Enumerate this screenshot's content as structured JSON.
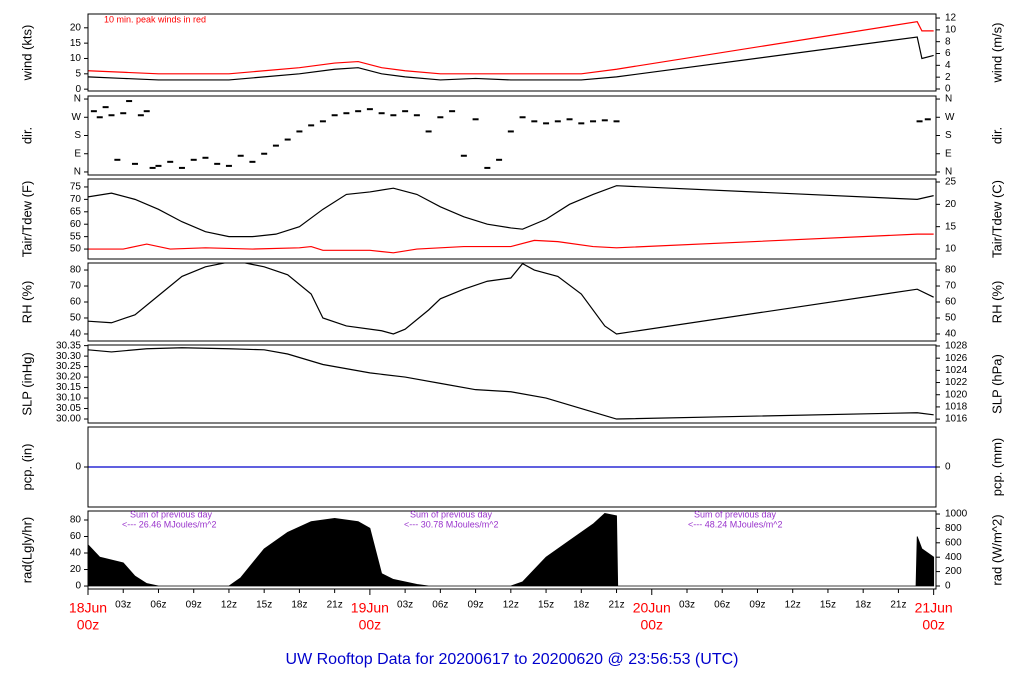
{
  "footer_title": "UW Rooftop Data for 20200617  to  20200620 @ 23:56:53  (UTC)",
  "chart_data": [
    {
      "type": "line",
      "ylabel": "wind (kts)",
      "y2label": "wind (m/s)",
      "annotation": "10 min. peak winds in red",
      "xlim": [
        0,
        72.2
      ],
      "ylim": [
        -0.6,
        24.5
      ],
      "yticks": [
        0,
        5,
        10,
        15,
        20
      ],
      "y2lim": [
        -0.34,
        12.68
      ],
      "y2ticks": [
        0,
        2,
        4,
        6,
        8,
        10,
        12
      ],
      "series": [
        {
          "color": "#000000",
          "x": [
            0,
            3,
            6,
            9,
            12,
            15,
            18,
            21,
            23,
            25,
            27,
            30,
            33,
            36,
            39,
            42,
            45,
            70.6,
            71,
            72
          ],
          "values": [
            4,
            3.5,
            3,
            3,
            3,
            4,
            5,
            6.5,
            7,
            5,
            4,
            3,
            3.5,
            3,
            3,
            3,
            4,
            17,
            10,
            11
          ]
        },
        {
          "color": "#ff0000",
          "x": [
            0,
            3,
            6,
            9,
            12,
            15,
            18,
            21,
            23,
            25,
            27,
            30,
            33,
            36,
            39,
            42,
            45,
            70.6,
            71,
            72
          ],
          "values": [
            6,
            5.5,
            5,
            5,
            5,
            6,
            7,
            8.5,
            9,
            7,
            6,
            5,
            5,
            5,
            5,
            5,
            6.5,
            22,
            19,
            19
          ]
        }
      ]
    },
    {
      "type": "scatter",
      "ylabel": "dir.",
      "y2label": "dir.",
      "xlim": [
        0,
        72.2
      ],
      "ylim": [
        -15,
        375
      ],
      "yticks": [
        {
          "value": 0,
          "label": "N"
        },
        {
          "value": 90,
          "label": "E"
        },
        {
          "value": 180,
          "label": "S"
        },
        {
          "value": 270,
          "label": "W"
        },
        {
          "value": 360,
          "label": "N"
        }
      ],
      "y2lim": [
        -15,
        375
      ],
      "y2ticks": [
        {
          "value": 0,
          "label": "N"
        },
        {
          "value": 90,
          "label": "E"
        },
        {
          "value": 180,
          "label": "S"
        },
        {
          "value": 270,
          "label": "W"
        },
        {
          "value": 360,
          "label": "N"
        }
      ],
      "series": [
        {
          "color": "#000000",
          "x": [
            0.5,
            1,
            1.5,
            2,
            2.5,
            3,
            3.5,
            4,
            4.5,
            5,
            5.5,
            6,
            7,
            8,
            9,
            10,
            11,
            12,
            13,
            14,
            15,
            16,
            17,
            18,
            19,
            20,
            21,
            22,
            23,
            24,
            25,
            26,
            27,
            28,
            29,
            30,
            31,
            32,
            33,
            34,
            35,
            36,
            37,
            38,
            39,
            40,
            41,
            42,
            43,
            44,
            45,
            70.8,
            71.5
          ],
          "values": [
            300,
            270,
            320,
            280,
            60,
            290,
            350,
            40,
            280,
            300,
            20,
            30,
            50,
            20,
            60,
            70,
            40,
            30,
            80,
            50,
            90,
            130,
            160,
            200,
            230,
            250,
            280,
            290,
            300,
            310,
            290,
            280,
            300,
            280,
            200,
            270,
            300,
            80,
            260,
            20,
            60,
            200,
            270,
            250,
            240,
            250,
            260,
            240,
            250,
            255,
            250,
            250,
            260
          ]
        }
      ]
    },
    {
      "type": "line",
      "ylabel": "Tair/Tdew (F)",
      "y2label": "Tair/Tdew (C)",
      "xlim": [
        0,
        72.2
      ],
      "ylim": [
        46.0,
        78.2
      ],
      "yticks": [
        50,
        55,
        60,
        65,
        70,
        75
      ],
      "y2lim": [
        7.76,
        25.67
      ],
      "y2ticks": [
        10,
        15,
        20,
        25
      ],
      "series": [
        {
          "color": "#000000",
          "x": [
            0,
            2,
            4,
            6,
            8,
            10,
            12,
            14,
            16,
            18,
            20,
            22,
            24,
            26,
            28,
            30,
            32,
            34,
            36,
            37,
            39,
            41,
            43,
            45,
            70.6,
            72
          ],
          "values": [
            71,
            72.5,
            70,
            66,
            61,
            57,
            55,
            55,
            56,
            59,
            66,
            72,
            73,
            74.5,
            72,
            67,
            63,
            60,
            58.5,
            58,
            62,
            68,
            72,
            75.5,
            70,
            71.5
          ]
        },
        {
          "color": "#ff0000",
          "x": [
            0,
            3,
            5,
            7,
            10,
            14,
            18,
            19,
            20,
            24,
            26,
            28,
            32,
            36,
            38,
            40,
            43,
            45,
            70.6,
            72
          ],
          "values": [
            50,
            50,
            52,
            50,
            50.5,
            50,
            50.5,
            51,
            49.5,
            49.5,
            48.5,
            50,
            51,
            51,
            53.5,
            53,
            51,
            50.5,
            56,
            56
          ]
        }
      ]
    },
    {
      "type": "line",
      "ylabel": "RH (%)",
      "y2label": "RH (%)",
      "xlim": [
        0,
        72.2
      ],
      "ylim": [
        35.6,
        84.4
      ],
      "yticks": [
        40,
        50,
        60,
        70,
        80
      ],
      "y2lim": [
        35.6,
        84.4
      ],
      "y2ticks": [
        40,
        50,
        60,
        70,
        80
      ],
      "series": [
        {
          "color": "#000000",
          "x": [
            0,
            2,
            4,
            6,
            8,
            10,
            12,
            13,
            15,
            17,
            19,
            20,
            22,
            25,
            26,
            27,
            29,
            30,
            32,
            34,
            36,
            37,
            38,
            40,
            42,
            44,
            45,
            70.6,
            72
          ],
          "values": [
            48,
            47,
            52,
            64,
            76,
            82,
            85,
            85,
            82,
            77,
            65,
            50,
            45,
            42,
            40,
            43,
            55,
            62,
            68,
            73,
            75,
            84,
            80,
            76,
            65,
            45,
            40,
            68,
            63
          ]
        }
      ]
    },
    {
      "type": "line",
      "ylabel": "SLP (inHg)",
      "y2label": "SLP (hPa)",
      "xlim": [
        0,
        72.2
      ],
      "ylim": [
        29.981,
        30.353
      ],
      "yticks": [
        {
          "value": 30.0,
          "label": "30.00"
        },
        30.05,
        {
          "value": 30.1,
          "label": "30.10"
        },
        30.15,
        {
          "value": 30.2,
          "label": "30.20"
        },
        30.25,
        {
          "value": 30.3,
          "label": "30.30"
        },
        30.35
      ],
      "y2lim": [
        1015.36,
        1028.16
      ],
      "y2ticks": [
        1016,
        1018,
        1020,
        1022,
        1024,
        1026,
        1028
      ],
      "series": [
        {
          "color": "#000000",
          "x": [
            0,
            2,
            5,
            8,
            12,
            15,
            17,
            20,
            24,
            27,
            30,
            33,
            36,
            39,
            42,
            45,
            70.6,
            72
          ],
          "values": [
            30.33,
            30.32,
            30.335,
            30.34,
            30.335,
            30.33,
            30.31,
            30.26,
            30.22,
            30.2,
            30.17,
            30.14,
            30.13,
            30.1,
            30.05,
            30.0,
            30.03,
            30.02
          ]
        }
      ]
    },
    {
      "type": "line",
      "ylabel": "pcp. (in)",
      "y2label": "pcp. (mm)",
      "xlim": [
        0,
        72.2
      ],
      "ylim": [
        -1,
        1
      ],
      "yticks": [
        0
      ],
      "y2lim": [
        -1,
        1
      ],
      "y2ticks": [
        0
      ],
      "series": [
        {
          "color": "#0000cc",
          "x": [
            0,
            72.2
          ],
          "values": [
            0,
            0
          ]
        }
      ]
    },
    {
      "type": "area",
      "ylabel": "rad(Lgly/hr)",
      "y2label": "rad (W/m^2)",
      "annotations": [
        "Sum of previous day",
        "<--- 26.46 MJoules/m^2",
        "Sum of previous day",
        "<--- 30.78 MJoules/m^2",
        "Sum of previous day",
        "<--- 48.24 MJoules/m^2"
      ],
      "xlim": [
        0,
        72.2
      ],
      "ylim": [
        -3.6,
        90.9
      ],
      "yticks": [
        0,
        20,
        40,
        60,
        80
      ],
      "y2lim": [
        -41.7,
        1041.7
      ],
      "y2ticks": [
        0,
        200,
        400,
        600,
        800,
        1000
      ],
      "xticks": [
        {
          "value": 3,
          "label": "03z"
        },
        {
          "value": 6,
          "label": "06z"
        },
        {
          "value": 9,
          "label": "09z"
        },
        {
          "value": 12,
          "label": "12z"
        },
        {
          "value": 15,
          "label": "15z"
        },
        {
          "value": 18,
          "label": "18z"
        },
        {
          "value": 21,
          "label": "21z"
        },
        {
          "value": 27,
          "label": "03z"
        },
        {
          "value": 30,
          "label": "06z"
        },
        {
          "value": 33,
          "label": "09z"
        },
        {
          "value": 36,
          "label": "12z"
        },
        {
          "value": 39,
          "label": "15z"
        },
        {
          "value": 42,
          "label": "18z"
        },
        {
          "value": 45,
          "label": "21z"
        },
        {
          "value": 51,
          "label": "03z"
        },
        {
          "value": 54,
          "label": "06z"
        },
        {
          "value": 57,
          "label": "09z"
        },
        {
          "value": 60,
          "label": "12z"
        },
        {
          "value": 63,
          "label": "15z"
        },
        {
          "value": 66,
          "label": "18z"
        },
        {
          "value": 69,
          "label": "21z"
        }
      ],
      "date_ticks": [
        {
          "value": 0,
          "label": "18Jun"
        },
        {
          "value": 24,
          "label": "19Jun"
        },
        {
          "value": 48,
          "label": "20Jun"
        },
        {
          "value": 72,
          "label": "21Jun"
        }
      ],
      "date_tick_hours": [
        "00z",
        "00z",
        "00z",
        "00z"
      ],
      "series": [
        {
          "color": "#000000",
          "x": [
            0,
            1,
            3,
            4,
            5,
            6,
            12,
            13,
            15,
            17,
            19,
            21,
            23,
            24,
            25,
            26,
            28,
            29,
            36,
            37,
            39,
            41,
            43,
            44,
            45,
            45.1,
            70.5,
            70.6,
            71,
            72
          ],
          "values": [
            50,
            35,
            28,
            12,
            3,
            0,
            0,
            10,
            45,
            65,
            78,
            82,
            78,
            70,
            15,
            8,
            2,
            0,
            0,
            5,
            35,
            55,
            75,
            88,
            85,
            0,
            0,
            60,
            45,
            35
          ]
        }
      ]
    }
  ]
}
